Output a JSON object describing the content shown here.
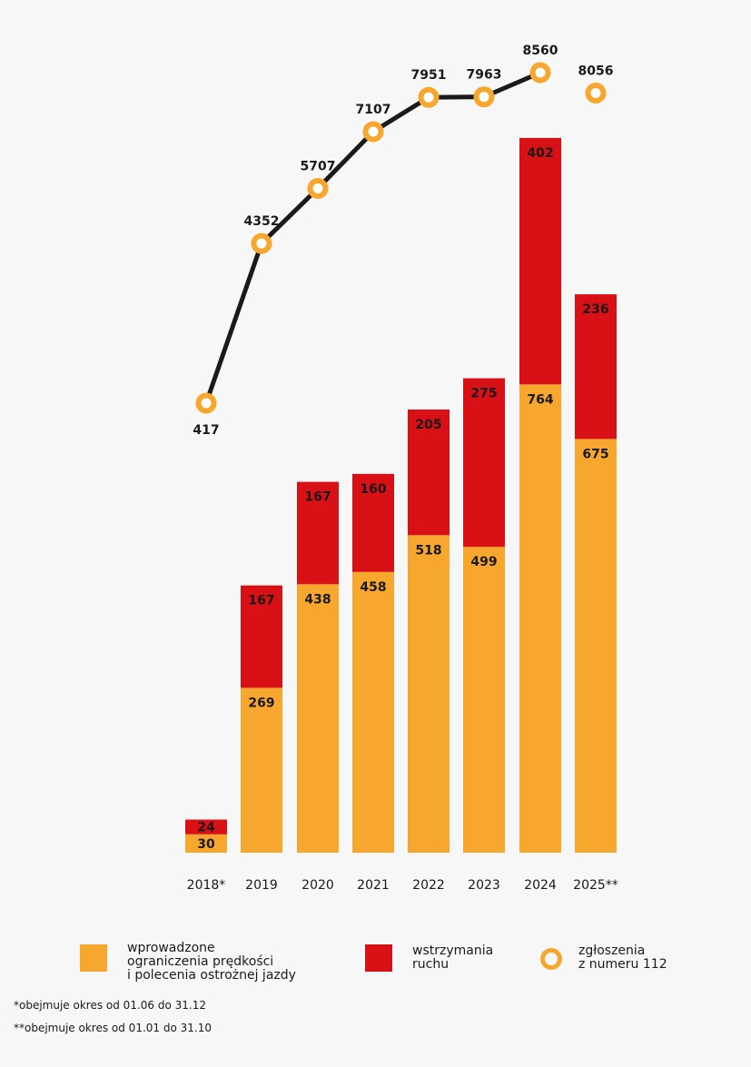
{
  "chart_data": {
    "type": "bar",
    "stacked": true,
    "categories": [
      "2018*",
      "2019",
      "2020",
      "2021",
      "2022",
      "2023",
      "2024",
      "2025**"
    ],
    "series": [
      {
        "name": "wprowadzone\nograniczenia prędkości\ni polecenia ostrożnej jazdy",
        "type": "bar",
        "color": "#F7A72D",
        "values": [
          30,
          269,
          438,
          458,
          518,
          499,
          764,
          675
        ]
      },
      {
        "name": "wstrzymania\nruchu",
        "type": "bar",
        "color": "#D91016",
        "values": [
          24,
          167,
          167,
          160,
          205,
          275,
          402,
          236
        ]
      },
      {
        "name": "zgłoszenia\nz numeru 112",
        "type": "line",
        "color": "#F7A72D",
        "line_color": "#1a1a1a",
        "values": [
          417,
          4352,
          5707,
          7107,
          7951,
          7963,
          8560,
          8056
        ]
      }
    ],
    "legend": "bottom",
    "grid": false,
    "notes": [
      "*obejmuje okres od 01.06 do 31.12",
      "**obejmuje okres od 01.01 do 31.10"
    ]
  }
}
